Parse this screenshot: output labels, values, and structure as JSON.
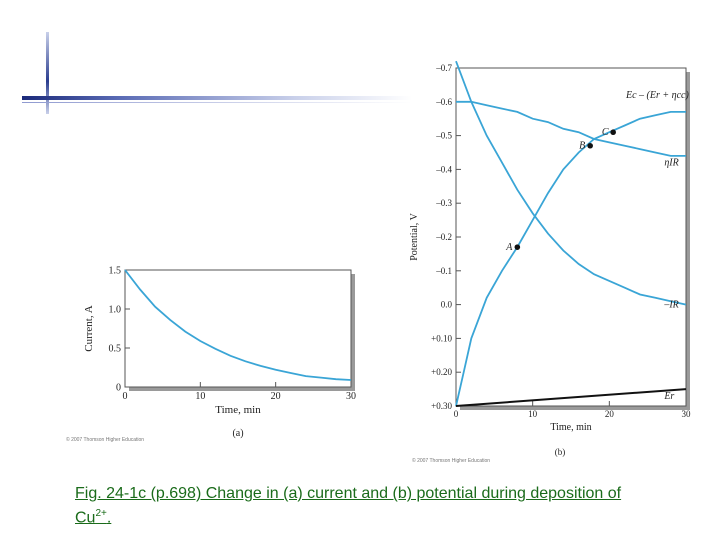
{
  "colors": {
    "curve": "#3aa5d6",
    "frame": "#555555",
    "shadow": "#9a9a9a",
    "text": "#222222",
    "caption": "#1a6b1a"
  },
  "chart_data": [
    {
      "type": "line",
      "panel_label": "(a)",
      "xlabel": "Time, min",
      "ylabel": "Current, A",
      "xlim": [
        0,
        30
      ],
      "ylim": [
        0,
        1.5
      ],
      "xticks": [
        "0",
        "10",
        "20",
        "30"
      ],
      "yticks": [
        "0",
        "0.5",
        "1.0",
        "1.5"
      ],
      "credit": "© 2007 Thomson Higher Education",
      "series": [
        {
          "x": [
            0,
            2,
            4,
            6,
            8,
            10,
            12,
            14,
            16,
            18,
            20,
            22,
            24,
            26,
            28,
            30
          ],
          "y": [
            1.5,
            1.25,
            1.03,
            0.86,
            0.71,
            0.59,
            0.49,
            0.4,
            0.33,
            0.27,
            0.22,
            0.18,
            0.14,
            0.12,
            0.1,
            0.09
          ]
        }
      ]
    },
    {
      "type": "line",
      "panel_label": "(b)",
      "xlabel": "Time, min",
      "ylabel": "Potential, V",
      "xlim": [
        0,
        30
      ],
      "ylim": [
        0.3,
        -0.7
      ],
      "xticks": [
        "0",
        "10",
        "20",
        "30"
      ],
      "yticks": [
        "–0.7",
        "–0.6",
        "–0.5",
        "–0.4",
        "–0.3",
        "–0.2",
        "–0.1",
        "0.0",
        "+0.10",
        "+0.20",
        "+0.30"
      ],
      "credit": "© 2007 Thomson Higher Education",
      "series": [
        {
          "name": "Ec – (Er + ηcc)",
          "x": [
            0,
            1,
            2,
            4,
            6,
            8,
            10,
            12,
            14,
            16,
            18,
            20,
            22,
            24,
            26,
            28,
            30
          ],
          "y": [
            0.3,
            0.2,
            0.1,
            -0.02,
            -0.1,
            -0.17,
            -0.25,
            -0.33,
            -0.4,
            -0.45,
            -0.49,
            -0.51,
            -0.53,
            -0.55,
            -0.56,
            -0.57,
            -0.57
          ]
        },
        {
          "name": "ηIR",
          "x": [
            0,
            2,
            4,
            6,
            8,
            10,
            12,
            14,
            16,
            18,
            20,
            22,
            24,
            26,
            28,
            30
          ],
          "y": [
            -0.6,
            -0.6,
            -0.59,
            -0.58,
            -0.57,
            -0.55,
            -0.54,
            -0.52,
            -0.51,
            -0.49,
            -0.48,
            -0.47,
            -0.46,
            -0.45,
            -0.44,
            -0.44
          ]
        },
        {
          "name": "–IR",
          "x": [
            0,
            2,
            4,
            6,
            8,
            10,
            12,
            14,
            16,
            18,
            20,
            22,
            24,
            26,
            28,
            30
          ],
          "y": [
            -0.72,
            -0.6,
            -0.5,
            -0.42,
            -0.34,
            -0.27,
            -0.21,
            -0.16,
            -0.12,
            -0.09,
            -0.07,
            -0.05,
            -0.03,
            -0.02,
            -0.01,
            0.0
          ]
        },
        {
          "name": "Er",
          "x": [
            0,
            30
          ],
          "y": [
            0.3,
            0.25
          ]
        }
      ],
      "labels": [
        {
          "text": "Ec – (Er + ηcc)",
          "x": 24,
          "y": -0.62
        },
        {
          "text": "ηIR",
          "x": 29,
          "y": -0.42
        },
        {
          "text": "–IR",
          "x": 29,
          "y": 0.0
        },
        {
          "text": "Er",
          "x": 29,
          "y": 0.27
        }
      ],
      "points": [
        {
          "label": "A",
          "x": 8,
          "y": -0.17
        },
        {
          "label": "B",
          "x": 17.5,
          "y": -0.47
        },
        {
          "label": "C",
          "x": 20.5,
          "y": -0.51
        }
      ]
    }
  ],
  "caption": {
    "text": "Fig. 24-1c (p.698) Change in (a) current and (b) potential during deposition of Cu",
    "superscript": "2+",
    "end": "."
  }
}
